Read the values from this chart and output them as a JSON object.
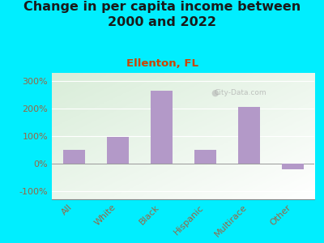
{
  "title": "Change in per capita income between\n2000 and 2022",
  "subtitle": "Ellenton, FL",
  "categories": [
    "All",
    "White",
    "Black",
    "Hispanic",
    "Multirace",
    "Other"
  ],
  "values": [
    50,
    97,
    265,
    50,
    207,
    -20
  ],
  "bar_color": "#b399c8",
  "background_outer": "#00eeff",
  "title_color": "#1a1a1a",
  "subtitle_color": "#cc4400",
  "tick_label_color": "#996644",
  "ytick_labels": [
    "-100%",
    "0%",
    "100%",
    "200%",
    "300%"
  ],
  "ytick_values": [
    -100,
    0,
    100,
    200,
    300
  ],
  "ylim": [
    -130,
    330
  ],
  "watermark": "City-Data.com",
  "xlabel_fontsize": 8,
  "ylabel_fontsize": 8,
  "title_fontsize": 11.5,
  "subtitle_fontsize": 9.5
}
